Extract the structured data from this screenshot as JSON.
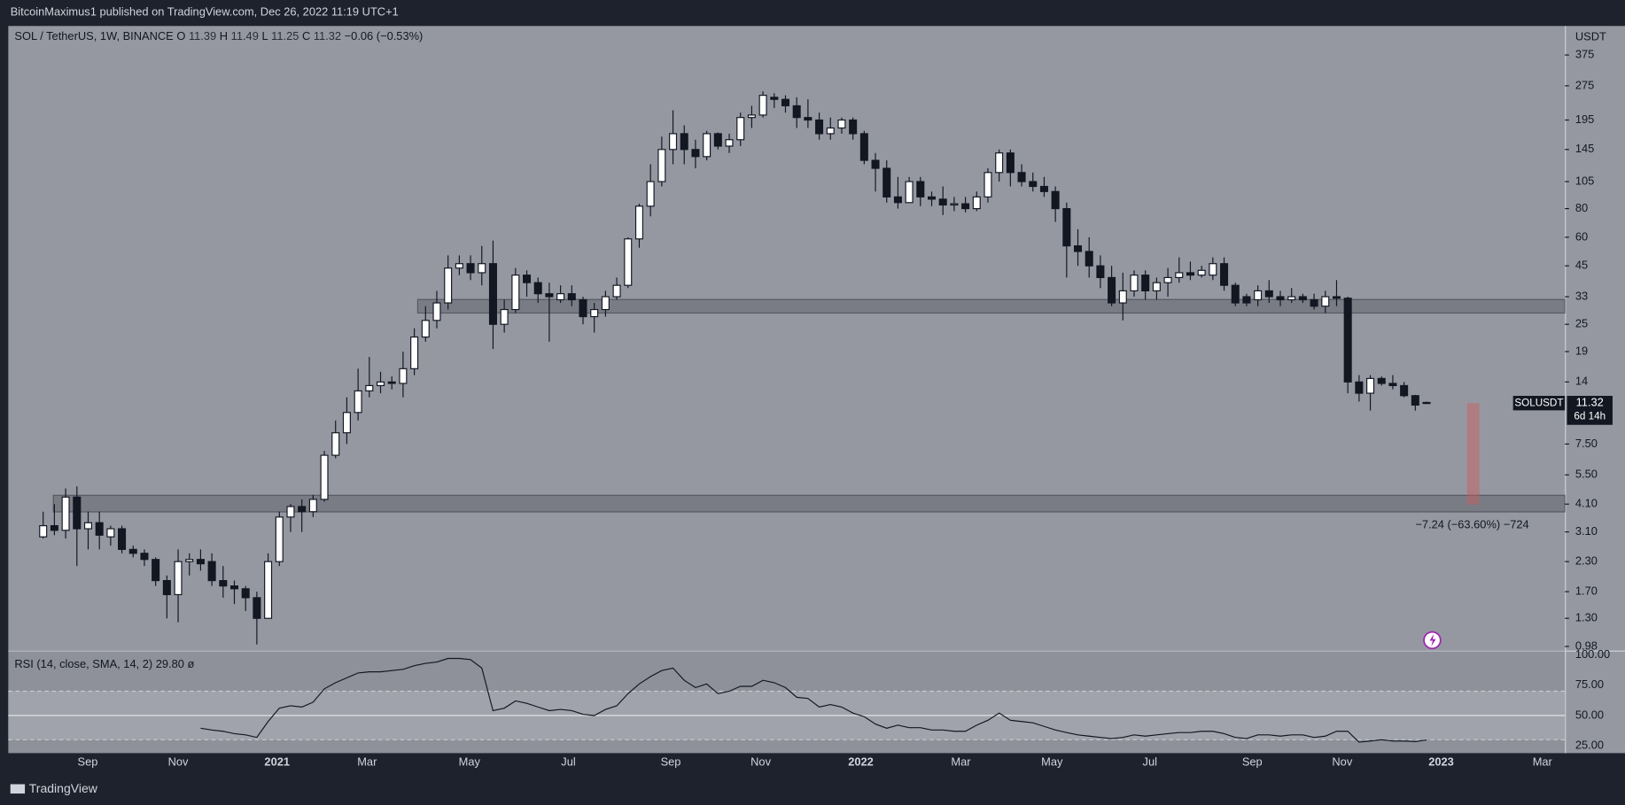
{
  "chart_data": {
    "type": "candlestick",
    "publisher": "BitcoinMaximus1 published on TradingView.com, Dec 26, 2022 11:19 UTC+1",
    "title": "SOL / TetherUS, 1W, BINANCE",
    "legend_labels": [
      "O",
      "H",
      "L",
      "C"
    ],
    "change_label": "−0.06 (−0.53%)",
    "up_color": "#ffffff",
    "down_color": "#131722",
    "log_scale": true,
    "y_unit": "USDT",
    "ylim": [
      0.94,
      502
    ],
    "yticks": [
      375,
      275,
      195,
      145,
      105,
      80,
      60,
      45,
      33,
      25,
      19,
      14,
      {
        "value": 7.5,
        "label": "7.50"
      },
      {
        "value": 5.5,
        "label": "5.50"
      },
      {
        "value": 4.1,
        "label": "4.10"
      },
      {
        "value": 3.1,
        "label": "3.10"
      },
      {
        "value": 2.3,
        "label": "2.30"
      },
      {
        "value": 1.7,
        "label": "1.70"
      },
      {
        "value": 1.3,
        "label": "1.30"
      },
      0.98
    ],
    "xlim": [
      -3.1,
      135.3
    ],
    "xticks": [
      {
        "value": 3.96,
        "label": "Sep"
      },
      {
        "value": 12,
        "label": "Nov"
      },
      {
        "value": 20.8,
        "label": "2021"
      },
      {
        "value": 28.8,
        "label": "Mar"
      },
      {
        "value": 37.9,
        "label": "May"
      },
      {
        "value": 46.7,
        "label": "Jul"
      },
      {
        "value": 55.8,
        "label": "Sep"
      },
      {
        "value": 63.8,
        "label": "Nov"
      },
      {
        "value": 72.7,
        "label": "2022"
      },
      {
        "value": 81.6,
        "label": "Mar"
      },
      {
        "value": 89.7,
        "label": "May"
      },
      {
        "value": 98.4,
        "label": "Jul"
      },
      {
        "value": 107.5,
        "label": "Sep"
      },
      {
        "value": 115.5,
        "label": "Nov"
      },
      {
        "value": 124.3,
        "label": "2023"
      },
      {
        "value": 133.3,
        "label": "Mar"
      }
    ],
    "candles": [
      [
        2.95,
        3.8,
        2.9,
        3.3
      ],
      [
        3.3,
        4.1,
        3.0,
        3.15
      ],
      [
        3.15,
        4.8,
        2.9,
        4.4
      ],
      [
        4.4,
        4.9,
        2.2,
        3.2
      ],
      [
        3.2,
        3.8,
        2.6,
        3.4
      ],
      [
        3.4,
        3.8,
        2.6,
        3.0
      ],
      [
        2.95,
        3.3,
        2.7,
        3.2
      ],
      [
        3.2,
        3.3,
        2.5,
        2.6
      ],
      [
        2.6,
        2.7,
        2.4,
        2.5
      ],
      [
        2.5,
        2.6,
        2.2,
        2.35
      ],
      [
        2.35,
        2.4,
        1.8,
        1.9
      ],
      [
        1.9,
        2.0,
        1.3,
        1.65
      ],
      [
        1.65,
        2.6,
        1.25,
        2.3
      ],
      [
        2.3,
        2.5,
        2.0,
        2.35
      ],
      [
        2.35,
        2.6,
        2.1,
        2.25
      ],
      [
        2.3,
        2.5,
        1.8,
        1.9
      ],
      [
        1.9,
        2.2,
        1.6,
        1.8
      ],
      [
        1.8,
        1.9,
        1.5,
        1.75
      ],
      [
        1.75,
        1.8,
        1.4,
        1.6
      ],
      [
        1.6,
        1.7,
        1.0,
        1.3
      ],
      [
        1.3,
        2.5,
        1.3,
        2.3
      ],
      [
        2.3,
        3.8,
        2.2,
        3.6
      ],
      [
        3.6,
        4.1,
        3.1,
        4.0
      ],
      [
        4.0,
        4.3,
        3.1,
        3.8
      ],
      [
        3.8,
        4.5,
        3.6,
        4.3
      ],
      [
        4.3,
        7.0,
        4.2,
        6.7
      ],
      [
        6.7,
        9.5,
        6.5,
        8.4
      ],
      [
        8.4,
        12,
        7.5,
        10.3
      ],
      [
        10.3,
        16,
        9.5,
        12.8
      ],
      [
        12.8,
        18,
        12,
        13.5
      ],
      [
        13.5,
        15.5,
        12.5,
        14
      ],
      [
        14,
        14.8,
        13,
        13.8
      ],
      [
        13.8,
        19,
        12,
        16
      ],
      [
        16,
        24,
        15,
        22
      ],
      [
        22,
        30,
        21,
        26
      ],
      [
        26,
        35,
        24,
        31
      ],
      [
        31,
        50,
        29,
        44
      ],
      [
        44,
        50,
        41,
        46
      ],
      [
        46,
        50,
        39,
        42
      ],
      [
        42,
        55,
        37,
        46
      ],
      [
        46,
        58,
        19.5,
        25
      ],
      [
        25,
        32,
        23,
        29
      ],
      [
        29,
        44,
        28,
        41
      ],
      [
        41,
        43,
        33,
        38
      ],
      [
        38,
        40,
        31,
        34
      ],
      [
        34,
        38,
        21,
        33
      ],
      [
        32,
        37,
        31,
        34
      ],
      [
        34,
        37,
        30,
        32
      ],
      [
        32,
        33,
        25,
        27
      ],
      [
        27,
        31,
        23,
        29
      ],
      [
        29,
        35,
        27,
        33
      ],
      [
        33,
        40,
        32,
        37
      ],
      [
        37,
        60,
        36,
        59
      ],
      [
        59,
        84,
        54,
        82
      ],
      [
        82,
        125,
        74,
        105
      ],
      [
        105,
        165,
        100,
        145
      ],
      [
        145,
        215,
        125,
        170
      ],
      [
        170,
        185,
        125,
        145
      ],
      [
        145,
        160,
        120,
        135
      ],
      [
        135,
        175,
        130,
        170
      ],
      [
        170,
        172,
        145,
        150
      ],
      [
        150,
        170,
        140,
        160
      ],
      [
        160,
        210,
        150,
        200
      ],
      [
        200,
        225,
        180,
        205
      ],
      [
        205,
        260,
        200,
        250
      ],
      [
        245,
        255,
        220,
        240
      ],
      [
        240,
        250,
        210,
        225
      ],
      [
        225,
        245,
        180,
        200
      ],
      [
        200,
        240,
        180,
        195
      ],
      [
        195,
        210,
        160,
        170
      ],
      [
        170,
        200,
        160,
        180
      ],
      [
        180,
        200,
        170,
        195
      ],
      [
        195,
        200,
        160,
        170
      ],
      [
        170,
        175,
        125,
        130
      ],
      [
        130,
        140,
        95,
        120
      ],
      [
        120,
        130,
        85,
        90
      ],
      [
        90,
        110,
        80,
        85
      ],
      [
        85,
        110,
        85,
        105
      ],
      [
        105,
        110,
        82,
        90
      ],
      [
        90,
        95,
        82,
        88
      ],
      [
        88,
        100,
        75,
        83
      ],
      [
        83,
        90,
        78,
        84
      ],
      [
        84,
        90,
        77,
        80
      ],
      [
        80,
        95,
        78,
        90
      ],
      [
        90,
        120,
        85,
        115
      ],
      [
        115,
        145,
        105,
        140
      ],
      [
        140,
        145,
        100,
        115
      ],
      [
        115,
        125,
        100,
        105
      ],
      [
        105,
        115,
        95,
        100
      ],
      [
        100,
        110,
        90,
        95
      ],
      [
        95,
        100,
        70,
        80
      ],
      [
        80,
        85,
        40,
        55
      ],
      [
        55,
        65,
        45,
        52
      ],
      [
        52,
        60,
        40,
        45
      ],
      [
        45,
        50,
        36,
        40
      ],
      [
        40,
        45,
        30,
        31
      ],
      [
        31,
        42,
        26,
        35
      ],
      [
        35,
        43,
        33,
        41
      ],
      [
        41,
        43,
        32,
        35
      ],
      [
        35,
        40,
        32,
        38
      ],
      [
        38,
        44,
        33,
        40
      ],
      [
        40,
        49,
        38,
        42
      ],
      [
        42,
        47,
        39,
        41
      ],
      [
        41,
        45,
        40,
        43
      ],
      [
        41,
        49,
        39,
        46
      ],
      [
        46,
        49,
        35,
        37
      ],
      [
        37,
        38,
        30,
        31
      ],
      [
        33,
        34,
        30,
        31
      ],
      [
        32,
        37,
        30,
        35
      ],
      [
        35,
        39,
        31,
        33
      ],
      [
        33,
        35,
        30,
        32
      ],
      [
        32,
        36,
        31,
        33
      ],
      [
        33,
        34,
        31,
        32
      ],
      [
        32,
        34,
        29,
        30
      ],
      [
        30,
        35,
        28,
        33
      ],
      [
        33,
        39,
        30,
        32.5
      ],
      [
        32.5,
        33,
        12.5,
        14
      ],
      [
        14,
        15,
        11.5,
        12.5
      ],
      [
        12.5,
        15,
        10.5,
        14.5
      ],
      [
        14.5,
        14.8,
        13.5,
        13.8
      ],
      [
        13.8,
        15,
        13,
        13.5
      ],
      [
        13.5,
        14,
        12,
        12.2
      ],
      [
        12.2,
        12.3,
        10.5,
        11.1
      ],
      [
        11.39,
        11.49,
        11.25,
        11.32
      ]
    ],
    "last_price": {
      "symbol": "SOLUSDT",
      "countdown": "6d 14h"
    },
    "zones": [
      {
        "start": 33.3,
        "top": 32.1,
        "bottom": 28.0
      },
      {
        "start": 0.9,
        "top": 4.48,
        "bottom": 3.79
      }
    ],
    "measure": {
      "x": [
        126.6,
        127.7
      ],
      "to": 4.08,
      "label": "−7.24 (−63.60%) −724"
    },
    "indicator": {
      "type": "line",
      "title": "RSI (14, close, SMA, 14, 2)",
      "last_label": "29.80",
      "source_icon": "ø",
      "color": "#131722",
      "ylim": [
        19,
        102.6
      ],
      "yticks": [
        {
          "value": 100,
          "label": "100.00"
        },
        {
          "value": 75,
          "label": "75.00"
        },
        {
          "value": 50,
          "label": "50.00"
        },
        {
          "value": 25,
          "label": "25.00"
        }
      ],
      "band": [
        30,
        70
      ],
      "values": [
        null,
        null,
        null,
        null,
        null,
        null,
        null,
        null,
        null,
        null,
        null,
        null,
        null,
        null,
        39.5,
        38,
        37,
        35,
        34,
        32,
        45,
        56,
        58,
        57,
        61,
        72,
        77,
        81,
        85,
        86,
        86,
        87,
        88,
        91,
        93,
        94,
        97,
        97,
        96,
        89,
        54,
        56,
        62,
        60,
        57,
        54,
        55,
        54,
        51,
        50,
        55,
        58,
        68,
        76,
        82,
        87,
        89,
        79,
        73,
        76,
        68,
        70,
        74,
        74,
        79,
        77,
        73,
        65,
        64,
        57,
        59,
        57,
        52,
        49,
        43,
        39.5,
        42,
        40,
        40,
        38,
        38,
        37,
        37,
        42,
        46,
        52,
        46,
        45,
        44,
        41,
        38,
        36,
        34,
        33,
        32,
        31,
        32,
        34,
        33,
        34,
        35,
        36,
        36,
        37,
        37,
        35,
        32,
        31,
        34,
        34,
        33,
        34,
        34,
        32,
        33,
        37,
        37,
        28,
        29,
        30,
        29,
        29,
        28.5,
        29.8
      ]
    },
    "footer": "TradingView"
  }
}
